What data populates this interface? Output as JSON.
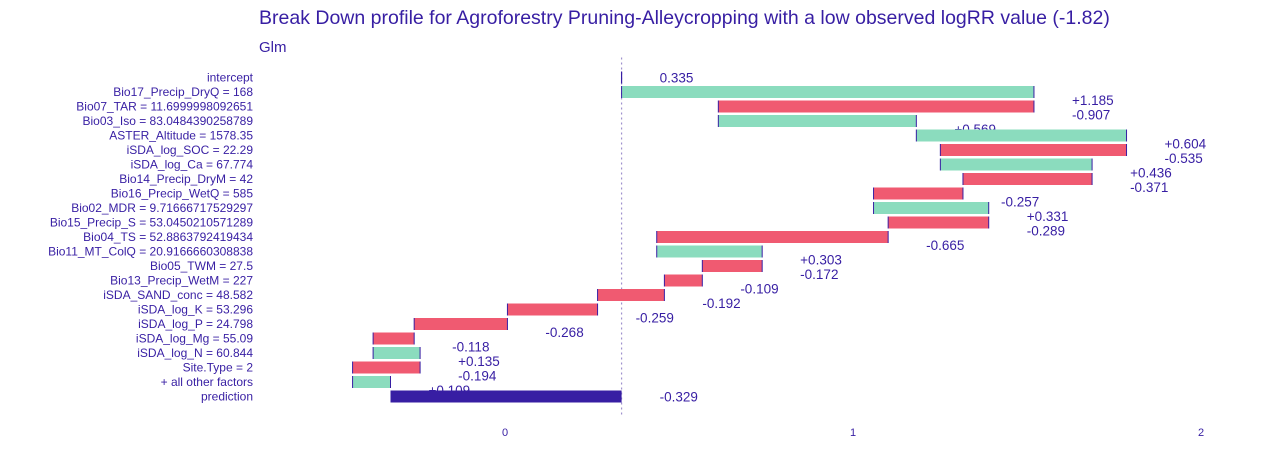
{
  "chart_data": {
    "type": "bar",
    "subtype": "waterfall-break-down",
    "title": "Break Down profile for Agroforestry Pruning-Alleycropping with a low observed logRR value (-1.82)",
    "subtitle": "Glm",
    "x_ticks": [
      "0",
      "1",
      "2"
    ],
    "xlim": [
      -0.46,
      2.0
    ],
    "baseline": 0.335,
    "grid": false,
    "colors": {
      "positive": "#8bdcbe",
      "negative": "#f05a71",
      "prediction": "#371ea3",
      "text": "#371ea3",
      "connector": "#371ea3",
      "baseline_line": "#9f92ce"
    },
    "bars": [
      {
        "variable": "intercept",
        "contribution": 0.335,
        "label": "0.335",
        "kind": "intercept"
      },
      {
        "variable": "Bio17_Precip_DryQ = 168",
        "contribution": 1.185,
        "label": "+1.185",
        "kind": "positive"
      },
      {
        "variable": "Bio07_TAR = 11.6999998092651",
        "contribution": -0.907,
        "label": "-0.907",
        "kind": "negative"
      },
      {
        "variable": "Bio03_Iso = 83.0484390258789",
        "contribution": 0.569,
        "label": "+0.569",
        "kind": "positive"
      },
      {
        "variable": "ASTER_Altitude = 1578.35",
        "contribution": 0.604,
        "label": "+0.604",
        "kind": "positive"
      },
      {
        "variable": "iSDA_log_SOC = 22.29",
        "contribution": -0.535,
        "label": "-0.535",
        "kind": "negative"
      },
      {
        "variable": "iSDA_log_Ca = 67.774",
        "contribution": 0.436,
        "label": "+0.436",
        "kind": "positive"
      },
      {
        "variable": "Bio14_Precip_DryM = 42",
        "contribution": -0.371,
        "label": "-0.371",
        "kind": "negative"
      },
      {
        "variable": "Bio16_Precip_WetQ = 585",
        "contribution": -0.257,
        "label": "-0.257",
        "kind": "negative"
      },
      {
        "variable": "Bio02_MDR = 9.71666717529297",
        "contribution": 0.331,
        "label": "+0.331",
        "kind": "positive"
      },
      {
        "variable": "Bio15_Precip_S = 53.0450210571289",
        "contribution": -0.289,
        "label": "-0.289",
        "kind": "negative"
      },
      {
        "variable": "Bio04_TS = 52.8863792419434",
        "contribution": -0.665,
        "label": "-0.665",
        "kind": "negative"
      },
      {
        "variable": "Bio11_MT_ColQ = 20.9166660308838",
        "contribution": 0.303,
        "label": "+0.303",
        "kind": "positive"
      },
      {
        "variable": "Bio05_TWM = 27.5",
        "contribution": -0.172,
        "label": "-0.172",
        "kind": "negative"
      },
      {
        "variable": "Bio13_Precip_WetM = 227",
        "contribution": -0.109,
        "label": "-0.109",
        "kind": "negative"
      },
      {
        "variable": "iSDA_SAND_conc = 48.582",
        "contribution": -0.192,
        "label": "-0.192",
        "kind": "negative"
      },
      {
        "variable": "iSDA_log_K = 53.296",
        "contribution": -0.259,
        "label": "-0.259",
        "kind": "negative"
      },
      {
        "variable": "iSDA_log_P = 24.798",
        "contribution": -0.268,
        "label": "-0.268",
        "kind": "negative"
      },
      {
        "variable": "iSDA_log_Mg = 55.09",
        "contribution": -0.118,
        "label": "-0.118",
        "kind": "negative"
      },
      {
        "variable": "iSDA_log_N = 60.844",
        "contribution": 0.135,
        "label": "+0.135",
        "kind": "positive"
      },
      {
        "variable": "Site.Type = 2",
        "contribution": -0.194,
        "label": "-0.194",
        "kind": "negative"
      },
      {
        "variable": "+ all other factors",
        "contribution": 0.109,
        "label": "+0.109",
        "kind": "positive"
      },
      {
        "variable": "prediction",
        "contribution": -0.329,
        "label": "-0.329",
        "kind": "prediction"
      }
    ]
  }
}
